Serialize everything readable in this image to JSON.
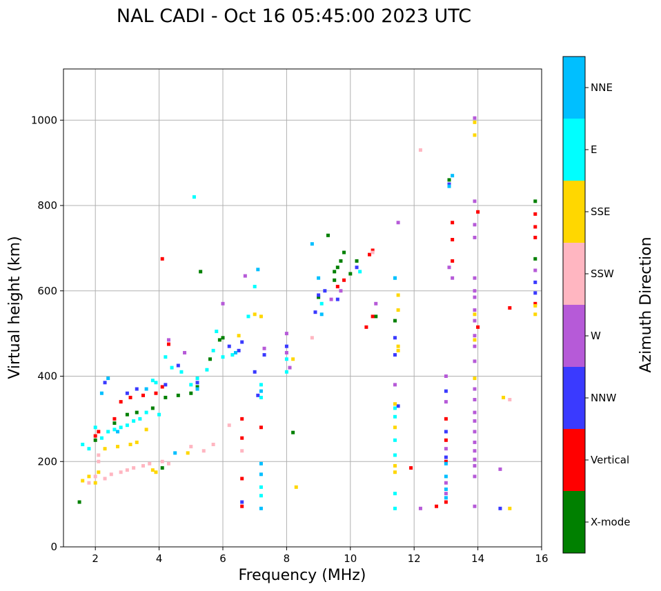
{
  "chart_data": {
    "type": "scatter",
    "title": "NAL CADI - Oct 16 05:45:00 2023 UTC",
    "xlabel": "Frequency (MHz)",
    "ylabel": "Virtual height (km)",
    "xlim": [
      1,
      16
    ],
    "ylim": [
      0,
      1120
    ],
    "xticks": [
      2,
      4,
      6,
      8,
      10,
      12,
      14,
      16
    ],
    "yticks": [
      0,
      200,
      400,
      600,
      800,
      1000
    ],
    "grid": true,
    "colorbar": {
      "title": "Azimuth Direction",
      "categories": [
        {
          "name": "X-mode",
          "color": "#008000"
        },
        {
          "name": "Vertical",
          "color": "#ff0000"
        },
        {
          "name": "NNW",
          "color": "#3a3aff"
        },
        {
          "name": "W",
          "color": "#b65ad8"
        },
        {
          "name": "SSW",
          "color": "#ffb6c1"
        },
        {
          "name": "SSE",
          "color": "#ffd700"
        },
        {
          "name": "E",
          "color": "#00ffff"
        },
        {
          "name": "NNE",
          "color": "#00bfff"
        }
      ]
    },
    "series": [
      {
        "name": "X-mode",
        "points": [
          [
            1.5,
            105
          ],
          [
            2.0,
            250
          ],
          [
            2.6,
            290
          ],
          [
            3.0,
            310
          ],
          [
            3.3,
            315
          ],
          [
            3.8,
            325
          ],
          [
            4.2,
            350
          ],
          [
            4.6,
            355
          ],
          [
            5.0,
            360
          ],
          [
            5.2,
            375
          ],
          [
            5.6,
            440
          ],
          [
            5.9,
            485
          ],
          [
            6.0,
            490
          ],
          [
            5.3,
            645
          ],
          [
            9.0,
            585
          ],
          [
            9.5,
            625
          ],
          [
            9.5,
            645
          ],
          [
            9.6,
            655
          ],
          [
            9.7,
            670
          ],
          [
            9.8,
            690
          ],
          [
            10.0,
            640
          ],
          [
            9.3,
            730
          ],
          [
            10.2,
            670
          ],
          [
            10.8,
            540
          ],
          [
            11.4,
            530
          ],
          [
            8.2,
            268
          ],
          [
            15.8,
            675
          ],
          [
            15.8,
            810
          ],
          [
            13.1,
            860
          ],
          [
            4.1,
            185
          ]
        ]
      },
      {
        "name": "Vertical",
        "points": [
          [
            2.0,
            260
          ],
          [
            2.1,
            270
          ],
          [
            2.6,
            300
          ],
          [
            2.8,
            340
          ],
          [
            3.1,
            350
          ],
          [
            3.5,
            355
          ],
          [
            3.9,
            360
          ],
          [
            4.1,
            375
          ],
          [
            4.3,
            475
          ],
          [
            4.1,
            675
          ],
          [
            6.6,
            300
          ],
          [
            6.6,
            255
          ],
          [
            6.6,
            160
          ],
          [
            6.6,
            95
          ],
          [
            7.2,
            280
          ],
          [
            9.6,
            610
          ],
          [
            9.8,
            625
          ],
          [
            10.6,
            685
          ],
          [
            10.7,
            695
          ],
          [
            10.7,
            540
          ],
          [
            10.5,
            515
          ],
          [
            11.9,
            185
          ],
          [
            12.7,
            95
          ],
          [
            13.0,
            300
          ],
          [
            13.0,
            250
          ],
          [
            13.0,
            200
          ],
          [
            13.0,
            105
          ],
          [
            13.2,
            760
          ],
          [
            13.2,
            720
          ],
          [
            13.2,
            670
          ],
          [
            14.0,
            785
          ],
          [
            14.0,
            515
          ],
          [
            15.0,
            560
          ],
          [
            15.8,
            780
          ],
          [
            15.8,
            750
          ],
          [
            15.8,
            725
          ],
          [
            15.8,
            570
          ]
        ]
      },
      {
        "name": "NNW",
        "points": [
          [
            2.3,
            385
          ],
          [
            3.0,
            360
          ],
          [
            3.3,
            370
          ],
          [
            4.2,
            380
          ],
          [
            4.6,
            425
          ],
          [
            5.2,
            385
          ],
          [
            6.2,
            470
          ],
          [
            6.5,
            460
          ],
          [
            6.6,
            480
          ],
          [
            6.6,
            105
          ],
          [
            7.0,
            410
          ],
          [
            7.1,
            355
          ],
          [
            7.3,
            450
          ],
          [
            8.0,
            470
          ],
          [
            8.9,
            550
          ],
          [
            9.0,
            590
          ],
          [
            9.2,
            600
          ],
          [
            9.6,
            580
          ],
          [
            10.2,
            655
          ],
          [
            11.4,
            490
          ],
          [
            11.4,
            450
          ],
          [
            11.5,
            330
          ],
          [
            13.0,
            365
          ],
          [
            13.0,
            270
          ],
          [
            13.0,
            210
          ],
          [
            13.1,
            850
          ],
          [
            14.7,
            90
          ],
          [
            15.8,
            620
          ],
          [
            15.8,
            595
          ]
        ]
      },
      {
        "name": "W",
        "points": [
          [
            4.3,
            485
          ],
          [
            4.8,
            455
          ],
          [
            6.0,
            570
          ],
          [
            6.7,
            635
          ],
          [
            7.3,
            465
          ],
          [
            8.0,
            500
          ],
          [
            8.0,
            455
          ],
          [
            8.1,
            420
          ],
          [
            9.4,
            580
          ],
          [
            9.7,
            600
          ],
          [
            10.8,
            570
          ],
          [
            11.5,
            760
          ],
          [
            11.4,
            380
          ],
          [
            13.0,
            400
          ],
          [
            13.0,
            340
          ],
          [
            13.0,
            230
          ],
          [
            13.0,
            150
          ],
          [
            13.0,
            125
          ],
          [
            13.1,
            655
          ],
          [
            13.2,
            630
          ],
          [
            13.9,
            1005
          ],
          [
            13.9,
            810
          ],
          [
            13.9,
            755
          ],
          [
            13.9,
            725
          ],
          [
            13.9,
            630
          ],
          [
            13.9,
            600
          ],
          [
            13.9,
            585
          ],
          [
            13.9,
            555
          ],
          [
            13.9,
            530
          ],
          [
            13.9,
            495
          ],
          [
            13.9,
            470
          ],
          [
            13.9,
            435
          ],
          [
            13.9,
            370
          ],
          [
            13.9,
            345
          ],
          [
            13.9,
            315
          ],
          [
            13.9,
            295
          ],
          [
            13.9,
            270
          ],
          [
            13.9,
            245
          ],
          [
            13.9,
            225
          ],
          [
            13.9,
            205
          ],
          [
            13.9,
            190
          ],
          [
            13.9,
            165
          ],
          [
            13.9,
            95
          ],
          [
            14.7,
            182
          ],
          [
            15.8,
            648
          ],
          [
            12.2,
            90
          ]
        ]
      },
      {
        "name": "SSW",
        "points": [
          [
            1.8,
            150
          ],
          [
            2.0,
            165
          ],
          [
            2.1,
            200
          ],
          [
            2.3,
            160
          ],
          [
            2.5,
            170
          ],
          [
            2.8,
            175
          ],
          [
            3.0,
            180
          ],
          [
            3.2,
            185
          ],
          [
            3.5,
            190
          ],
          [
            3.7,
            195
          ],
          [
            4.1,
            200
          ],
          [
            4.3,
            195
          ],
          [
            5.0,
            235
          ],
          [
            5.4,
            225
          ],
          [
            5.7,
            240
          ],
          [
            6.2,
            285
          ],
          [
            6.6,
            225
          ],
          [
            8.8,
            490
          ],
          [
            10.7,
            690
          ],
          [
            12.2,
            930
          ],
          [
            15.0,
            345
          ],
          [
            2.1,
            215
          ]
        ]
      },
      {
        "name": "SSE",
        "points": [
          [
            1.6,
            155
          ],
          [
            1.8,
            165
          ],
          [
            2.0,
            150
          ],
          [
            2.1,
            175
          ],
          [
            2.3,
            230
          ],
          [
            2.7,
            235
          ],
          [
            3.1,
            240
          ],
          [
            3.3,
            245
          ],
          [
            3.6,
            275
          ],
          [
            3.8,
            180
          ],
          [
            3.9,
            175
          ],
          [
            4.9,
            220
          ],
          [
            6.5,
            495
          ],
          [
            7.0,
            545
          ],
          [
            7.2,
            540
          ],
          [
            8.2,
            440
          ],
          [
            8.3,
            140
          ],
          [
            11.4,
            335
          ],
          [
            11.4,
            280
          ],
          [
            11.4,
            190
          ],
          [
            11.4,
            175
          ],
          [
            11.5,
            590
          ],
          [
            11.5,
            555
          ],
          [
            11.5,
            470
          ],
          [
            11.5,
            460
          ],
          [
            13.9,
            995
          ],
          [
            13.9,
            965
          ],
          [
            13.9,
            545
          ],
          [
            13.9,
            485
          ],
          [
            13.9,
            395
          ],
          [
            15.0,
            90
          ],
          [
            15.8,
            545
          ],
          [
            15.8,
            565
          ],
          [
            14.8,
            350
          ]
        ]
      },
      {
        "name": "E",
        "points": [
          [
            1.6,
            240
          ],
          [
            1.8,
            230
          ],
          [
            2.0,
            280
          ],
          [
            2.2,
            255
          ],
          [
            2.4,
            270
          ],
          [
            2.6,
            275
          ],
          [
            2.8,
            280
          ],
          [
            3.0,
            285
          ],
          [
            3.2,
            295
          ],
          [
            3.4,
            300
          ],
          [
            3.6,
            315
          ],
          [
            3.8,
            390
          ],
          [
            3.9,
            385
          ],
          [
            4.0,
            310
          ],
          [
            4.2,
            445
          ],
          [
            4.4,
            420
          ],
          [
            4.7,
            410
          ],
          [
            5.0,
            380
          ],
          [
            5.2,
            395
          ],
          [
            5.5,
            415
          ],
          [
            5.7,
            460
          ],
          [
            5.8,
            505
          ],
          [
            5.1,
            820
          ],
          [
            6.0,
            445
          ],
          [
            6.3,
            450
          ],
          [
            6.8,
            540
          ],
          [
            7.0,
            610
          ],
          [
            7.2,
            380
          ],
          [
            7.2,
            350
          ],
          [
            7.2,
            140
          ],
          [
            7.2,
            120
          ],
          [
            8.0,
            440
          ],
          [
            8.0,
            410
          ],
          [
            9.1,
            570
          ],
          [
            10.3,
            645
          ],
          [
            11.4,
            90
          ],
          [
            11.4,
            125
          ],
          [
            11.4,
            630
          ],
          [
            11.4,
            325
          ],
          [
            11.4,
            305
          ],
          [
            11.4,
            250
          ],
          [
            11.4,
            215
          ]
        ]
      },
      {
        "name": "NNE",
        "points": [
          [
            2.2,
            360
          ],
          [
            2.4,
            395
          ],
          [
            2.7,
            270
          ],
          [
            3.6,
            370
          ],
          [
            4.5,
            220
          ],
          [
            5.2,
            370
          ],
          [
            6.4,
            455
          ],
          [
            7.2,
            365
          ],
          [
            7.2,
            170
          ],
          [
            7.2,
            195
          ],
          [
            7.2,
            90
          ],
          [
            7.1,
            650
          ],
          [
            8.8,
            710
          ],
          [
            9.0,
            630
          ],
          [
            9.1,
            545
          ],
          [
            11.4,
            630
          ],
          [
            13.0,
            195
          ],
          [
            13.0,
            165
          ],
          [
            13.0,
            135
          ],
          [
            13.0,
            115
          ],
          [
            13.1,
            845
          ],
          [
            13.2,
            870
          ]
        ]
      }
    ]
  }
}
